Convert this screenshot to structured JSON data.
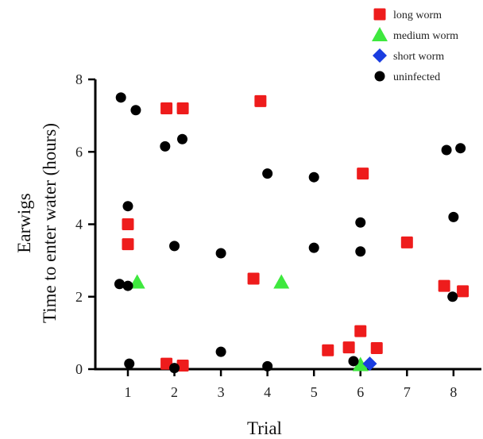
{
  "chart_data": {
    "type": "scatter",
    "title": "",
    "xlabel": "Trial",
    "ylabel_lines": [
      "Earwigs",
      "Time to enter water (hours)"
    ],
    "xlim": [
      0.3,
      8.6
    ],
    "ylim": [
      0,
      8
    ],
    "xticks": [
      1,
      2,
      3,
      4,
      5,
      6,
      7,
      8
    ],
    "yticks": [
      0,
      2,
      4,
      6,
      8
    ],
    "legend_position": "top-right",
    "grid": false,
    "series": [
      {
        "name": "long worm",
        "marker": "square",
        "color": "#ee1c1c",
        "points": [
          {
            "x": 1.0,
            "y": 4.0
          },
          {
            "x": 1.0,
            "y": 3.45
          },
          {
            "x": 1.83,
            "y": 7.2
          },
          {
            "x": 2.18,
            "y": 7.2
          },
          {
            "x": 1.83,
            "y": 0.15
          },
          {
            "x": 2.18,
            "y": 0.1
          },
          {
            "x": 3.85,
            "y": 7.4
          },
          {
            "x": 3.7,
            "y": 2.5
          },
          {
            "x": 5.3,
            "y": 0.52
          },
          {
            "x": 5.75,
            "y": 0.6
          },
          {
            "x": 6.0,
            "y": 1.05
          },
          {
            "x": 6.35,
            "y": 0.58
          },
          {
            "x": 6.05,
            "y": 5.4
          },
          {
            "x": 7.0,
            "y": 3.5
          },
          {
            "x": 7.8,
            "y": 2.3
          },
          {
            "x": 8.2,
            "y": 2.15
          }
        ]
      },
      {
        "name": "medium worm",
        "marker": "triangle",
        "color": "#3ee83e",
        "points": [
          {
            "x": 1.2,
            "y": 2.4
          },
          {
            "x": 4.3,
            "y": 2.4
          },
          {
            "x": 6.0,
            "y": 0.12
          }
        ]
      },
      {
        "name": "short worm",
        "marker": "diamond",
        "color": "#1a3de0",
        "points": [
          {
            "x": 6.2,
            "y": 0.15
          }
        ]
      },
      {
        "name": "uninfected",
        "marker": "circle",
        "color": "#000000",
        "points": [
          {
            "x": 0.85,
            "y": 7.5
          },
          {
            "x": 1.17,
            "y": 7.15
          },
          {
            "x": 1.0,
            "y": 4.5
          },
          {
            "x": 0.82,
            "y": 2.35
          },
          {
            "x": 1.0,
            "y": 2.3
          },
          {
            "x": 1.03,
            "y": 0.15
          },
          {
            "x": 1.8,
            "y": 6.15
          },
          {
            "x": 2.17,
            "y": 6.35
          },
          {
            "x": 2.0,
            "y": 3.4
          },
          {
            "x": 2.0,
            "y": 0.03
          },
          {
            "x": 3.0,
            "y": 3.2
          },
          {
            "x": 3.0,
            "y": 0.48
          },
          {
            "x": 4.0,
            "y": 5.4
          },
          {
            "x": 4.0,
            "y": 0.08
          },
          {
            "x": 5.0,
            "y": 5.3
          },
          {
            "x": 5.0,
            "y": 3.35
          },
          {
            "x": 6.0,
            "y": 4.05
          },
          {
            "x": 6.0,
            "y": 3.25
          },
          {
            "x": 5.85,
            "y": 0.22
          },
          {
            "x": 7.85,
            "y": 6.05
          },
          {
            "x": 8.15,
            "y": 6.1
          },
          {
            "x": 8.0,
            "y": 4.2
          },
          {
            "x": 7.98,
            "y": 2.0
          }
        ]
      }
    ]
  }
}
